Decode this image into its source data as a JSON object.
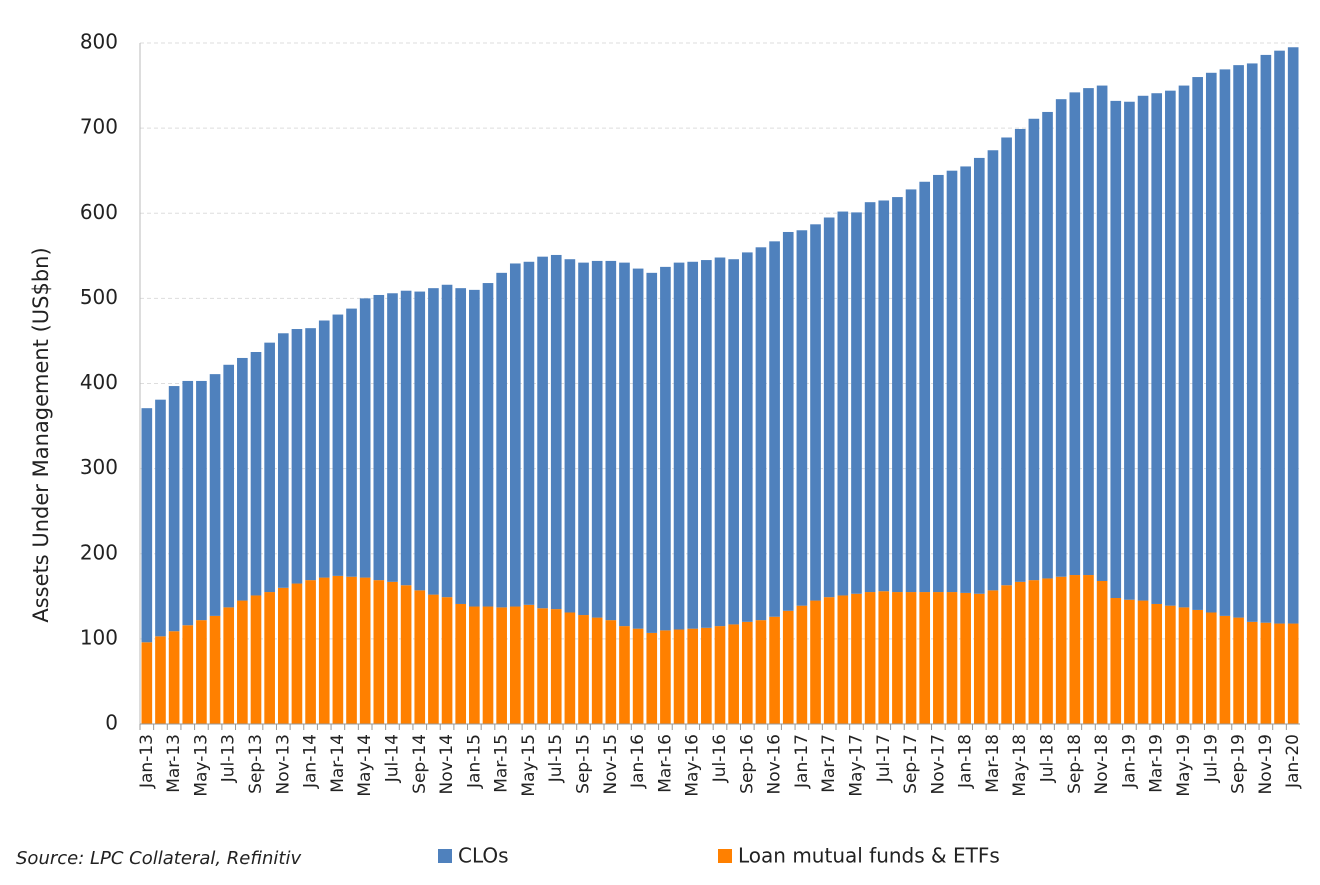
{
  "chart_data": {
    "type": "bar",
    "stacked": true,
    "ylabel": "Assets Under Management (US$bn)",
    "source": "Source: LPC Collateral, Refinitiv",
    "categories": [
      "Jan-13",
      null,
      "Mar-13",
      null,
      "May-13",
      null,
      "Jul-13",
      null,
      "Sep-13",
      null,
      "Nov-13",
      null,
      "Jan-14",
      null,
      "Mar-14",
      null,
      "May-14",
      null,
      "Jul-14",
      null,
      "Sep-14",
      null,
      "Nov-14",
      null,
      "Jan-15",
      null,
      "Mar-15",
      null,
      "May-15",
      null,
      "Jul-15",
      null,
      "Sep-15",
      null,
      "Nov-15",
      null,
      "Jan-16",
      null,
      "Mar-16",
      null,
      "May-16",
      null,
      "Jul-16",
      null,
      "Sep-16",
      null,
      "Nov-16",
      null,
      "Jan-17",
      null,
      "Mar-17",
      null,
      "May-17",
      null,
      "Jul-17",
      null,
      "Sep-17",
      null,
      "Nov-17",
      null,
      "Jan-18",
      null,
      "Mar-18",
      null,
      "May-18",
      null,
      "Jul-18",
      null,
      "Sep-18",
      null,
      "Nov-18",
      null,
      "Jan-19",
      null,
      "Mar-19",
      null,
      "May-19",
      null,
      "Jul-19",
      null,
      "Sep-19",
      null,
      "Nov-19",
      null,
      "Jan-20"
    ],
    "series": [
      {
        "name": "CLOs",
        "color": "#4f81bd",
        "values": [
          275,
          278,
          288,
          287,
          281,
          284,
          285,
          285,
          286,
          293,
          299,
          299,
          296,
          302,
          307,
          315,
          328,
          335,
          339,
          346,
          351,
          360,
          367,
          371,
          372,
          380,
          393,
          403,
          403,
          413,
          416,
          415,
          414,
          419,
          422,
          427,
          423,
          423,
          427,
          431,
          431,
          432,
          433,
          429,
          434,
          438,
          441,
          445,
          441,
          442,
          446,
          451,
          448,
          458,
          459,
          464,
          473,
          482,
          490,
          495,
          501,
          512,
          517,
          526,
          532,
          542,
          548,
          561,
          567,
          572,
          582,
          584,
          585,
          593,
          600,
          605,
          613,
          626,
          634,
          642,
          649,
          656,
          667,
          673,
          677
        ]
      },
      {
        "name": "Loan mutual funds & ETFs",
        "color": "#ff8000",
        "values": [
          96,
          103,
          109,
          116,
          122,
          127,
          137,
          145,
          151,
          155,
          160,
          165,
          169,
          172,
          174,
          173,
          172,
          169,
          167,
          163,
          157,
          152,
          149,
          141,
          138,
          138,
          137,
          138,
          140,
          136,
          135,
          131,
          128,
          125,
          122,
          115,
          112,
          107,
          110,
          111,
          112,
          113,
          115,
          117,
          120,
          122,
          126,
          133,
          139,
          145,
          149,
          151,
          153,
          155,
          156,
          155,
          155,
          155,
          155,
          155,
          154,
          153,
          157,
          163,
          167,
          169,
          171,
          173,
          175,
          175,
          168,
          148,
          146,
          145,
          141,
          139,
          137,
          134,
          131,
          127,
          125,
          120,
          119,
          118,
          118
        ]
      }
    ],
    "ylim": [
      0,
      800
    ],
    "yticks": [
      0,
      100,
      200,
      300,
      400,
      500,
      600,
      700,
      800
    ],
    "grid": true
  }
}
